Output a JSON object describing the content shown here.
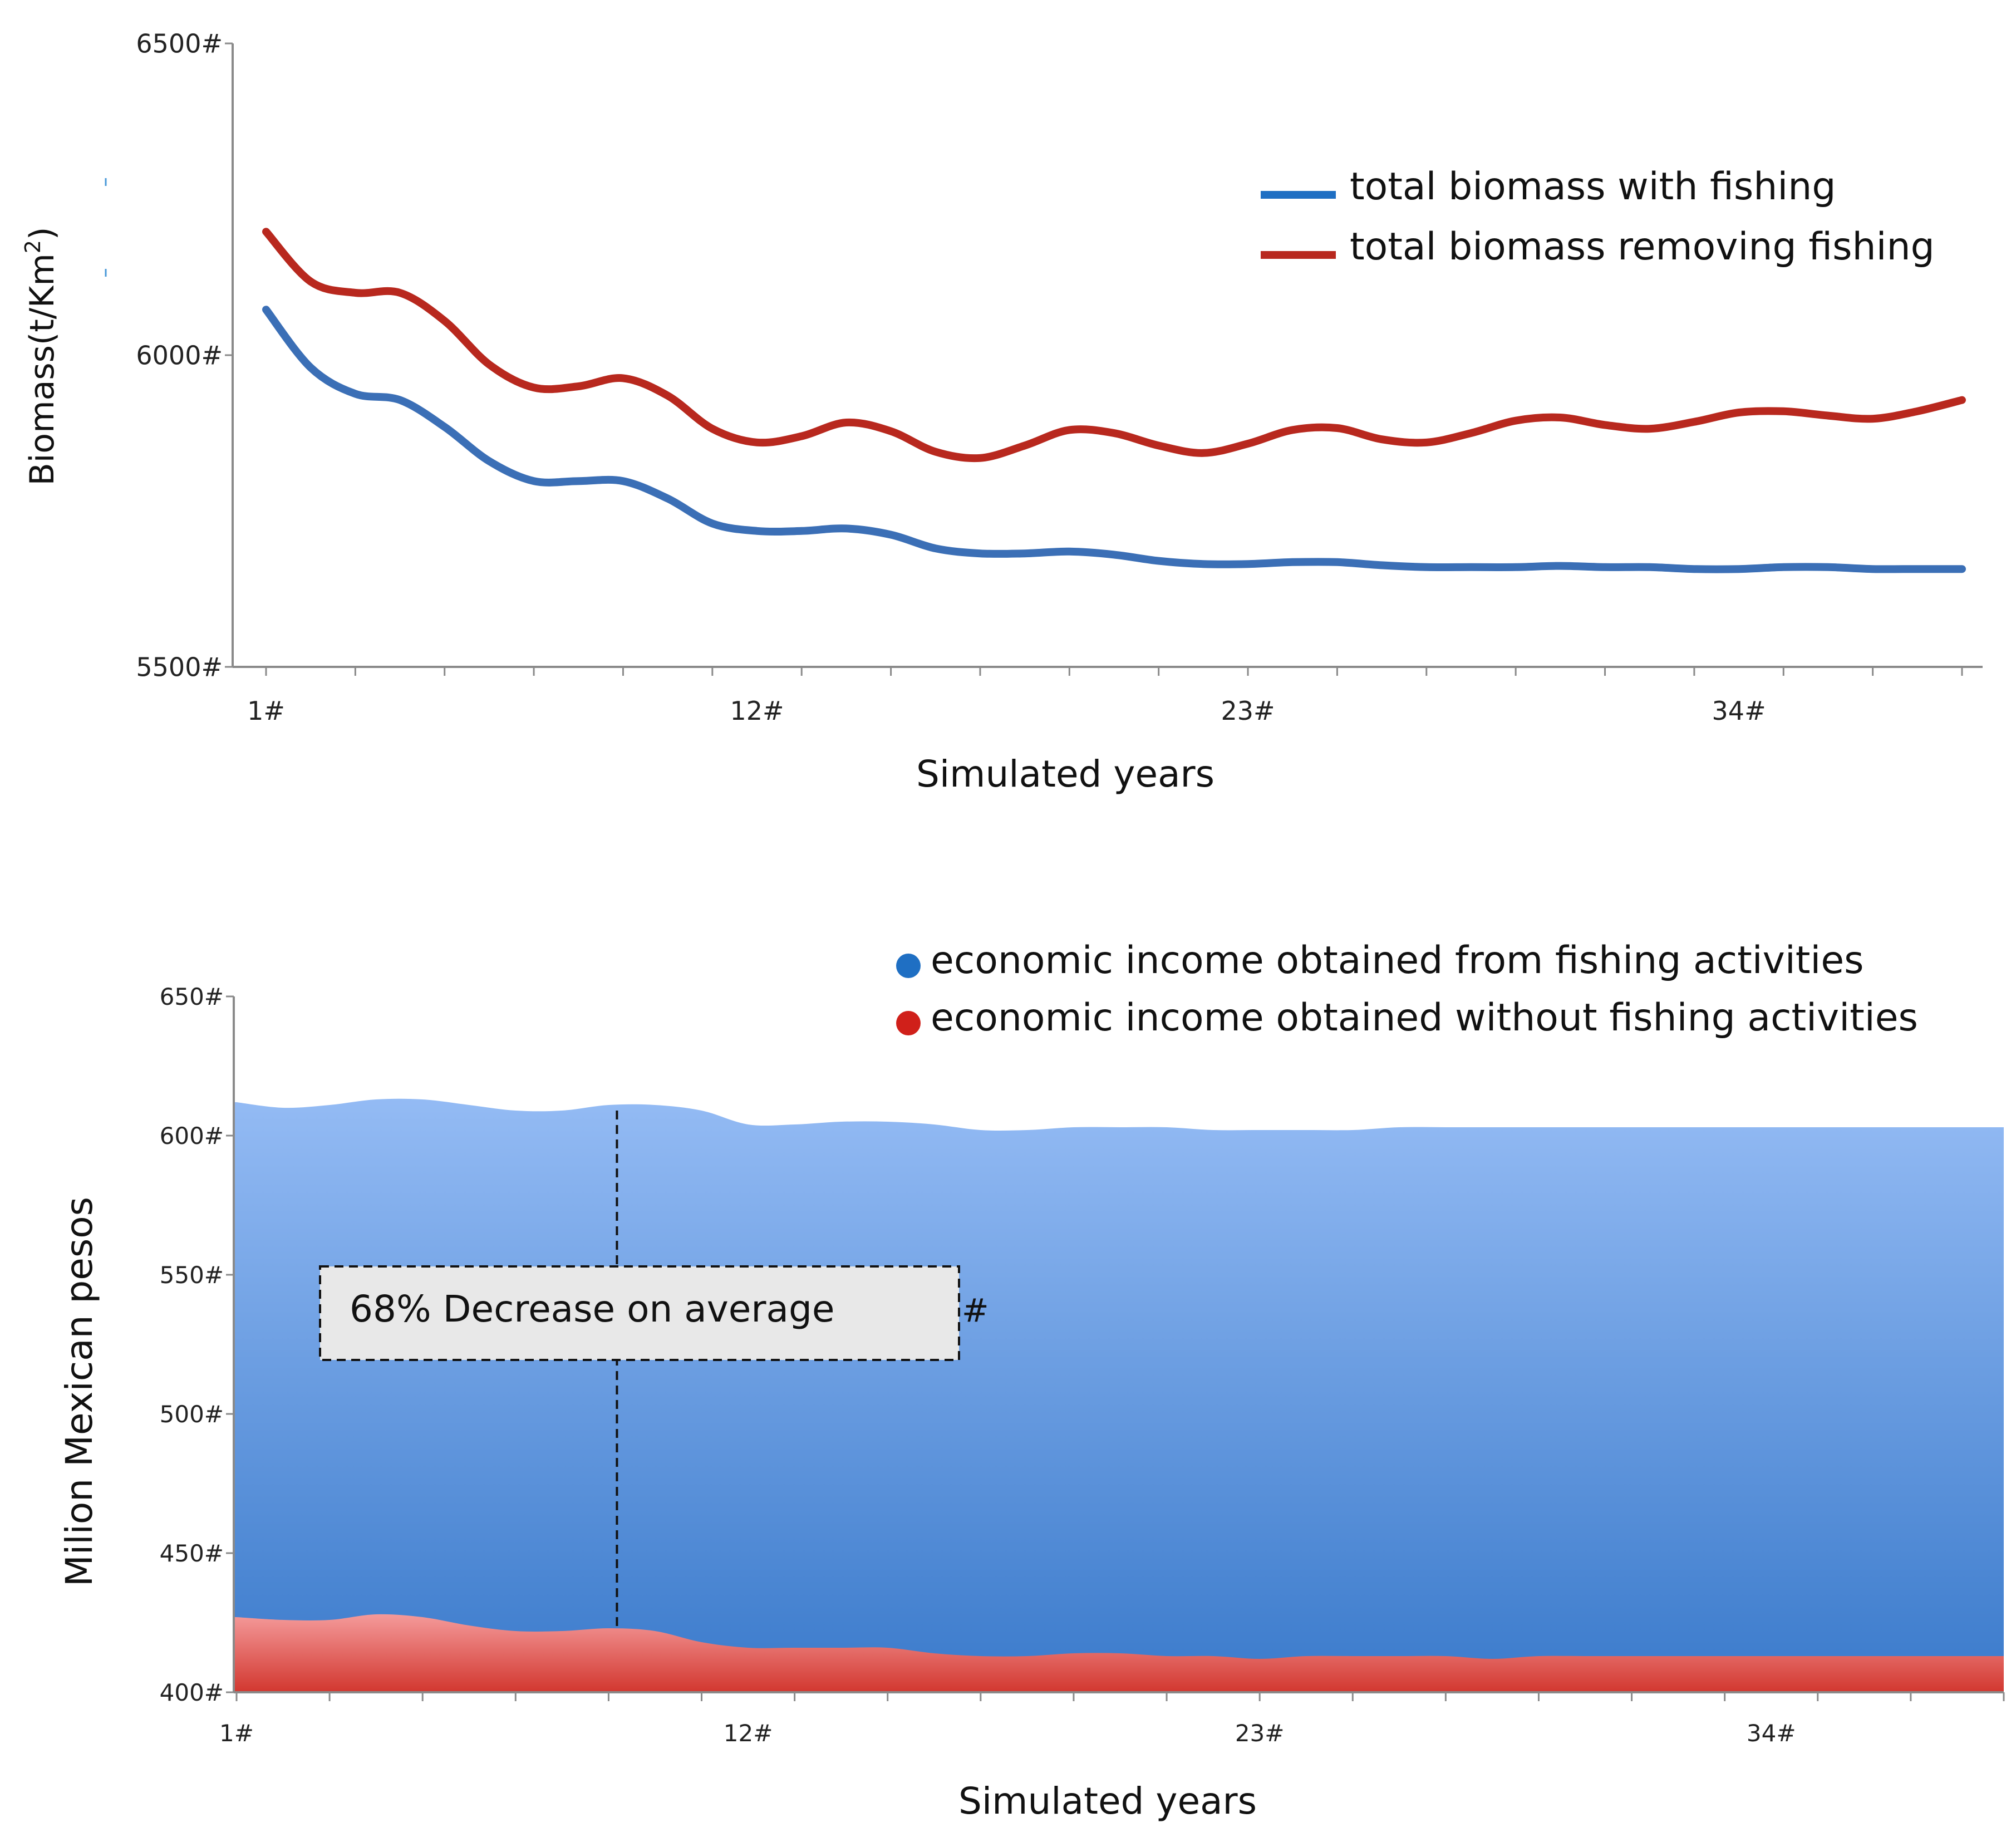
{
  "chart_data": [
    {
      "type": "line",
      "title": "",
      "xlabel": "Simulated years",
      "ylabel": "Biomass(t/Km²)",
      "ylabel_parts": {
        "main": "Biomass(t/Km",
        "sup": "2",
        "close": ")"
      },
      "ylim": [
        5500,
        6500
      ],
      "xlim": [
        1,
        39
      ],
      "yticks": [
        5500,
        6000,
        6500
      ],
      "yticklabels": [
        "5500#",
        "6000#",
        "6500#"
      ],
      "xticks": [
        1,
        12,
        23,
        34
      ],
      "xticklabels": [
        "1#",
        "12#",
        "23#",
        "34#"
      ],
      "legend_position": "top-right",
      "series": [
        {
          "name": "total biomass with fishing",
          "color": "#3B6FB6",
          "x": [
            1,
            2,
            3,
            4,
            5,
            6,
            7,
            8,
            9,
            10,
            11,
            12,
            13,
            14,
            15,
            16,
            17,
            18,
            19,
            20,
            21,
            22,
            23,
            24,
            25,
            26,
            27,
            28,
            29,
            30,
            31,
            32,
            33,
            34,
            35,
            36,
            37,
            38,
            39
          ],
          "values": [
            6073,
            5980,
            5938,
            5928,
            5885,
            5830,
            5798,
            5798,
            5798,
            5770,
            5730,
            5718,
            5718,
            5722,
            5712,
            5690,
            5682,
            5682,
            5685,
            5680,
            5670,
            5665,
            5665,
            5668,
            5668,
            5663,
            5660,
            5660,
            5660,
            5662,
            5660,
            5660,
            5657,
            5657,
            5660,
            5660,
            5657,
            5657,
            5657
          ]
        },
        {
          "name": "total biomass removing fishing",
          "color": "#B8281E",
          "x": [
            1,
            2,
            3,
            4,
            5,
            6,
            7,
            8,
            9,
            10,
            11,
            12,
            13,
            14,
            15,
            16,
            17,
            18,
            19,
            20,
            21,
            22,
            23,
            24,
            25,
            26,
            27,
            28,
            29,
            30,
            31,
            32,
            33,
            34,
            35,
            36,
            37,
            38,
            39
          ],
          "values": [
            6198,
            6118,
            6100,
            6100,
            6055,
            5985,
            5948,
            5950,
            5963,
            5935,
            5882,
            5860,
            5870,
            5892,
            5878,
            5845,
            5835,
            5855,
            5880,
            5875,
            5855,
            5843,
            5858,
            5880,
            5883,
            5865,
            5860,
            5875,
            5895,
            5900,
            5888,
            5882,
            5893,
            5908,
            5910,
            5903,
            5898,
            5910,
            5928
          ]
        }
      ]
    },
    {
      "type": "area",
      "title": "",
      "xlabel": "Simulated years",
      "ylabel": "Milion Mexican pesos",
      "ylim": [
        400,
        650
      ],
      "xlim": [
        1,
        39
      ],
      "yticks": [
        400,
        450,
        500,
        550,
        600,
        650
      ],
      "yticklabels": [
        "400#",
        "450#",
        "500#",
        "550#",
        "600#",
        "650#"
      ],
      "xticks": [
        1,
        12,
        23,
        34
      ],
      "xticklabels": [
        "1#",
        "12#",
        "23#",
        "34#"
      ],
      "legend_position": "top-right",
      "annotation": {
        "text": "68% Decrease on average",
        "suffix": "#",
        "x": 9,
        "y_range": [
          422,
          609
        ]
      },
      "series": [
        {
          "name": "economic income obtained from fishing activities",
          "color": "#3F7FCF",
          "x": [
            1,
            2,
            3,
            4,
            5,
            6,
            7,
            8,
            9,
            10,
            11,
            12,
            13,
            14,
            15,
            16,
            17,
            18,
            19,
            20,
            21,
            22,
            23,
            24,
            25,
            26,
            27,
            28,
            29,
            30,
            31,
            32,
            33,
            34,
            35,
            36,
            37,
            38,
            39
          ],
          "values": [
            612,
            610,
            611,
            613,
            613,
            611,
            609,
            609,
            611,
            611,
            609,
            604,
            604,
            605,
            605,
            604,
            602,
            602,
            603,
            603,
            603,
            602,
            602,
            602,
            602,
            603,
            603,
            603,
            603,
            603,
            603,
            603,
            603,
            603,
            603,
            603,
            603,
            603,
            603
          ]
        },
        {
          "name": "economic income obtained without fishing activities",
          "color": "#D83A3A",
          "x": [
            1,
            2,
            3,
            4,
            5,
            6,
            7,
            8,
            9,
            10,
            11,
            12,
            13,
            14,
            15,
            16,
            17,
            18,
            19,
            20,
            21,
            22,
            23,
            24,
            25,
            26,
            27,
            28,
            29,
            30,
            31,
            32,
            33,
            34,
            35,
            36,
            37,
            38,
            39
          ],
          "values": [
            427,
            426,
            426,
            428,
            427,
            424,
            422,
            422,
            423,
            422,
            418,
            416,
            416,
            416,
            416,
            414,
            413,
            413,
            414,
            414,
            413,
            413,
            412,
            413,
            413,
            413,
            413,
            412,
            413,
            413,
            413,
            413,
            413,
            413,
            413,
            413,
            413,
            413,
            413
          ]
        }
      ]
    }
  ]
}
